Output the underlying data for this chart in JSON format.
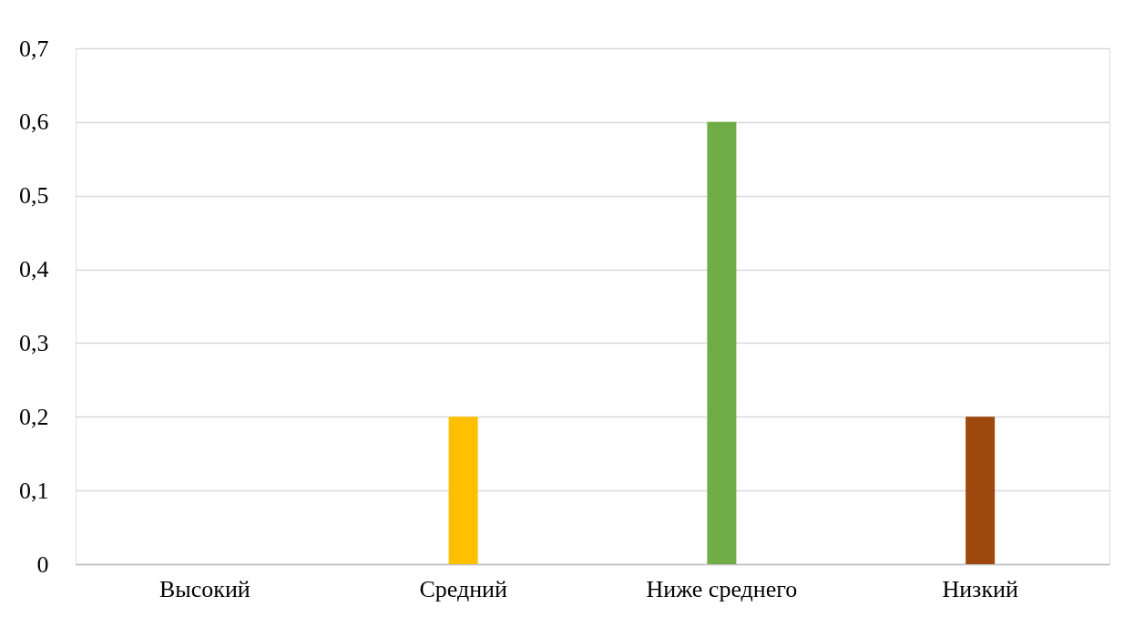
{
  "chart_data": {
    "type": "bar",
    "categories": [
      "Высокий",
      "Средний",
      "Ниже среднего",
      "Низкий"
    ],
    "values": [
      0,
      0.2,
      0.6,
      0.2
    ],
    "colors": [
      "#5b9bd5",
      "#ffc000",
      "#70ad47",
      "#9e480e"
    ],
    "ylim": [
      0,
      0.7
    ],
    "yticks": [
      0,
      {
        "value": 0.1,
        "label": "0,1"
      },
      {
        "value": 0.2,
        "label": "0,2"
      },
      {
        "value": 0.3,
        "label": "0,3"
      },
      {
        "value": 0.4,
        "label": "0,4"
      },
      {
        "value": 0.5,
        "label": "0,5"
      },
      {
        "value": 0.6,
        "label": "0,6"
      },
      {
        "value": 0.7,
        "label": "0,7"
      }
    ],
    "grid": "y"
  }
}
